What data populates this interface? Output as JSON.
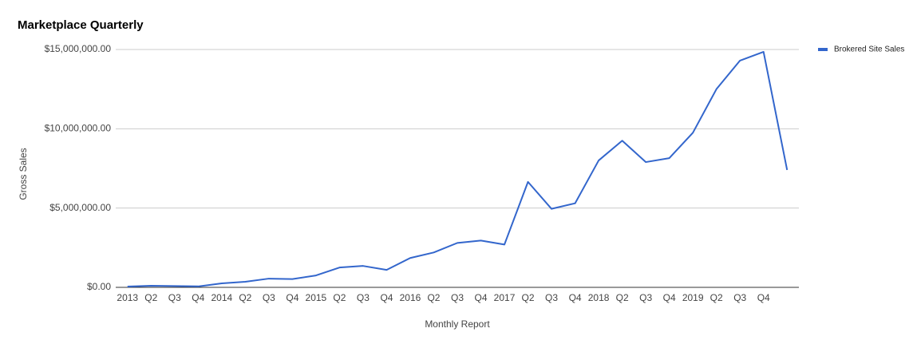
{
  "chart_data": {
    "type": "line",
    "title": "Marketplace Quarterly",
    "x_label": "Monthly Report",
    "y_label": "Gross Sales",
    "categories": [
      "2013",
      "Q2",
      "Q3",
      "Q4",
      "2014",
      "Q2",
      "Q3",
      "Q4",
      "2015",
      "Q2",
      "Q3",
      "Q4",
      "2016",
      "Q2",
      "Q3",
      "Q4",
      "2017",
      "Q2",
      "Q3",
      "Q4",
      "2018",
      "Q2",
      "Q3",
      "Q4",
      "2019",
      "Q2",
      "Q3",
      "Q4",
      null
    ],
    "series": [
      {
        "name": "Brokered Site Sales",
        "color": "#3366cc",
        "values": [
          50000,
          100000,
          80000,
          60000,
          250000,
          350000,
          550000,
          520000,
          750000,
          1250000,
          1350000,
          1100000,
          1850000,
          2200000,
          2800000,
          2950000,
          2700000,
          6650000,
          4950000,
          5300000,
          8000000,
          9250000,
          7900000,
          8150000,
          9750000,
          12500000,
          14300000,
          14850000,
          7400000
        ]
      }
    ],
    "ylim": [
      0,
      15000000
    ],
    "yticks": [
      {
        "value": 0,
        "label": "$0.00"
      },
      {
        "value": 5000000,
        "label": "$5,000,000.00"
      },
      {
        "value": 10000000,
        "label": "$10,000,000.00"
      },
      {
        "value": 15000000,
        "label": "$15,000,000.00"
      }
    ],
    "grid": true,
    "legend": "right"
  }
}
